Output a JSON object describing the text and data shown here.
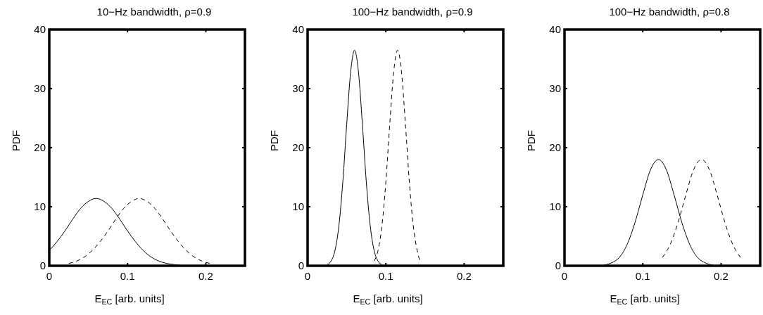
{
  "chart_data": [
    {
      "type": "line",
      "title": "10−Hz bandwidth, ρ=0.9",
      "xlabel": "E$_{EC}$ [arb. units]",
      "ylabel": "PDF",
      "xlim": [
        0,
        0.25
      ],
      "xticks": [
        0,
        0.1,
        0.2
      ],
      "ylim": [
        0,
        40
      ],
      "yticks": [
        0,
        10,
        20,
        30,
        40
      ],
      "grid": false,
      "series": [
        {
          "color": "#000000",
          "line_style": "solid",
          "x": [
            0,
            0.01,
            0.02,
            0.03,
            0.04,
            0.05,
            0.06,
            0.07,
            0.08,
            0.09,
            0.1,
            0.11,
            0.12,
            0.13,
            0.14,
            0.15,
            0.16,
            0.18,
            0.2
          ],
          "values": [
            2.6,
            4.1,
            5.9,
            7.9,
            9.7,
            10.9,
            11.4,
            10.9,
            9.7,
            7.9,
            5.9,
            4.1,
            2.6,
            1.5,
            0.8,
            0.4,
            0.2,
            0,
            0
          ]
        },
        {
          "color": "#000000",
          "line_style": "dashed",
          "x": [
            0.025,
            0.035,
            0.045,
            0.055,
            0.065,
            0.075,
            0.085,
            0.095,
            0.105,
            0.115,
            0.125,
            0.135,
            0.145,
            0.155,
            0.165,
            0.175,
            0.185,
            0.195,
            0.205
          ],
          "values": [
            0.4,
            0.8,
            1.5,
            2.6,
            4.1,
            5.9,
            7.9,
            9.7,
            10.9,
            11.4,
            10.9,
            9.7,
            7.9,
            5.9,
            4.1,
            2.6,
            1.5,
            0.8,
            0.4
          ]
        }
      ]
    },
    {
      "type": "line",
      "title": "100−Hz bandwidth, ρ=0.9",
      "xlabel": "E$_{EC}$ [arb. units]",
      "ylabel": "PDF",
      "xlim": [
        0,
        0.25
      ],
      "xticks": [
        0,
        0.1,
        0.2
      ],
      "ylim": [
        0,
        40
      ],
      "yticks": [
        0,
        10,
        20,
        30,
        40
      ],
      "grid": false,
      "series": [
        {
          "color": "#000000",
          "line_style": "solid",
          "x": [
            0.025,
            0.03,
            0.035,
            0.04,
            0.045,
            0.05,
            0.055,
            0.06,
            0.065,
            0.07,
            0.075,
            0.08,
            0.085,
            0.09,
            0.095
          ],
          "values": [
            0.2,
            0.8,
            2.6,
            6.8,
            14.2,
            24,
            32.8,
            36.5,
            32.8,
            24,
            14.2,
            6.8,
            2.6,
            0.8,
            0.2
          ]
        },
        {
          "color": "#000000",
          "line_style": "dashed",
          "x": [
            0.085,
            0.09,
            0.095,
            0.1,
            0.105,
            0.11,
            0.115,
            0.12,
            0.125,
            0.13,
            0.135,
            0.14,
            0.143
          ],
          "values": [
            0.8,
            2.6,
            6.8,
            14.2,
            24,
            32.8,
            36.5,
            32.8,
            24,
            14.2,
            6.8,
            2.6,
            1
          ]
        }
      ]
    },
    {
      "type": "line",
      "title": "100−Hz bandwidth, ρ=0.8",
      "xlabel": "E$_{EC}$  [arb. units]",
      "ylabel": "PDF",
      "xlim": [
        0,
        0.25
      ],
      "xticks": [
        0,
        0.1,
        0.2
      ],
      "ylim": [
        0,
        40
      ],
      "yticks": [
        0,
        10,
        20,
        30,
        40
      ],
      "grid": false,
      "series": [
        {
          "color": "#000000",
          "line_style": "solid",
          "x": [
            0.05,
            0.06,
            0.07,
            0.08,
            0.09,
            0.1,
            0.11,
            0.12,
            0.13,
            0.14,
            0.15,
            0.16,
            0.17,
            0.18,
            0.19
          ],
          "values": [
            0.1,
            0.5,
            1.4,
            3.6,
            7.3,
            12,
            16.3,
            18,
            16.3,
            12,
            7.3,
            3.6,
            1.4,
            0.5,
            0.1
          ]
        },
        {
          "color": "#000000",
          "line_style": "dashed",
          "x": [
            0.125,
            0.135,
            0.145,
            0.155,
            0.165,
            0.175,
            0.185,
            0.195,
            0.205,
            0.215,
            0.225
          ],
          "values": [
            1.4,
            3.6,
            7.3,
            12,
            16.3,
            18,
            16.3,
            12,
            7.3,
            3.6,
            1.4
          ]
        }
      ]
    }
  ]
}
